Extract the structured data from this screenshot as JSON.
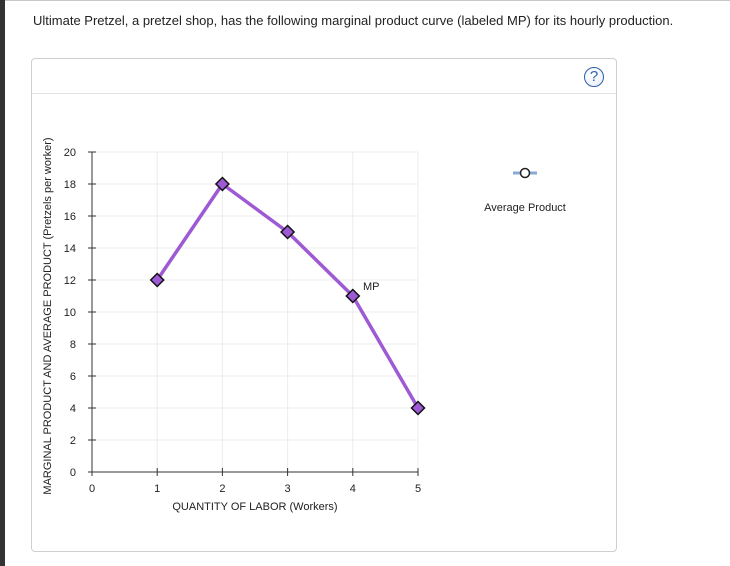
{
  "question": "Ultimate Pretzel, a pretzel shop, has the following marginal product curve (labeled MP) for its hourly production.",
  "help_icon": "?",
  "chart_data": {
    "type": "line",
    "xlabel": "QUANTITY OF LABOR (Workers)",
    "ylabel": "MARGINAL PRODUCT AND AVERAGE PRODUCT (Pretzels per worker)",
    "xlim": [
      0,
      5
    ],
    "ylim": [
      0,
      20
    ],
    "xticks": [
      0,
      1,
      2,
      3,
      4,
      5
    ],
    "yticks": [
      0,
      2,
      4,
      6,
      8,
      10,
      12,
      14,
      16,
      18,
      20
    ],
    "grid": true,
    "series": [
      {
        "name": "MP",
        "label": "MP",
        "color": "#9e59d4",
        "marker": "diamond",
        "x": [
          1,
          2,
          3,
          4,
          5
        ],
        "y": [
          12,
          18,
          15,
          11,
          4
        ]
      }
    ],
    "legend": [
      {
        "name": "Average Product",
        "color": "#8aa9d8",
        "marker": "circle",
        "placement": "top-right"
      }
    ]
  }
}
